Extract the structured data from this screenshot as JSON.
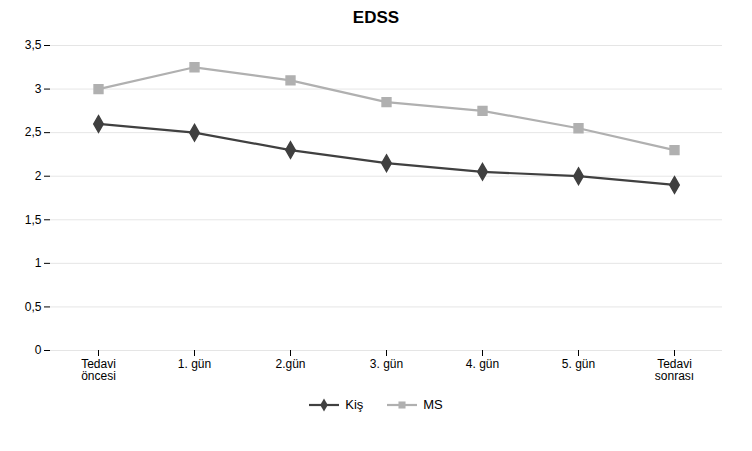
{
  "chart_data": {
    "type": "line",
    "title": "EDSS",
    "categories": [
      "Tedavi\nöncesi",
      "1. gün",
      "2.gün",
      "3. gün",
      "4. gün",
      "5. gün",
      "Tedavi\nsonrası"
    ],
    "series": [
      {
        "name": "Kiş",
        "color": "#404040",
        "marker": "diamond",
        "values": [
          2.6,
          2.5,
          2.3,
          2.15,
          2.05,
          2.0,
          1.9
        ]
      },
      {
        "name": "MS",
        "color": "#b0b0b0",
        "marker": "square",
        "values": [
          3.0,
          3.25,
          3.1,
          2.85,
          2.75,
          2.55,
          2.3
        ]
      }
    ],
    "ylim": [
      0,
      3.5
    ],
    "yticks": [
      0,
      {
        "value": 0.5,
        "label": "0,5"
      },
      1,
      {
        "value": 1.5,
        "label": "1,5"
      },
      2,
      {
        "value": 2.5,
        "label": "2,5"
      },
      3,
      {
        "value": 3.5,
        "label": "3,5"
      }
    ],
    "grid": true,
    "legend": "bottom"
  }
}
